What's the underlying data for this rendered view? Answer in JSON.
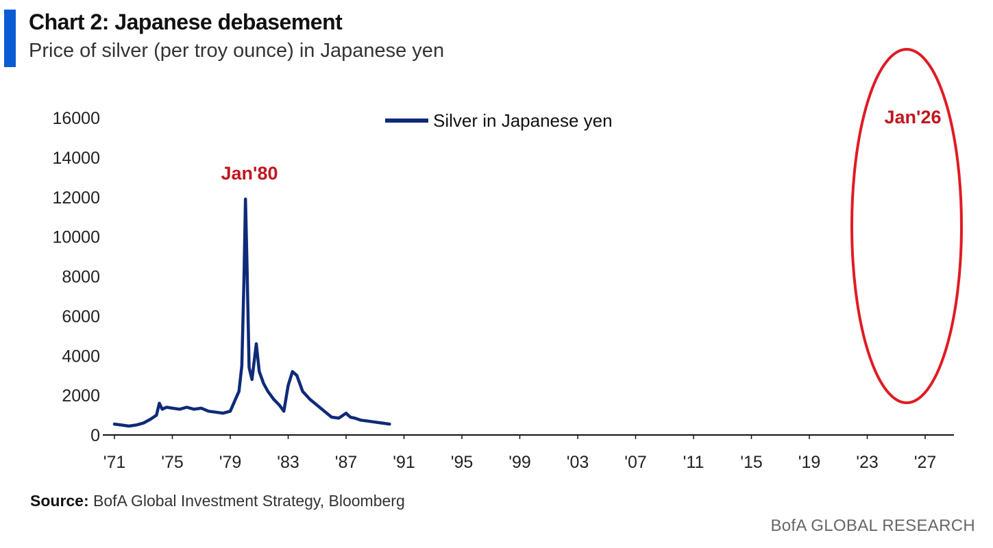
{
  "header": {
    "title": "Chart 2: Japanese debasement",
    "subtitle": "Price of silver (per troy ounce) in Japanese yen"
  },
  "footer": {
    "source_label": "Source:",
    "source_text": "BofA Global Investment Strategy, Bloomberg",
    "brand": "BofA GLOBAL RESEARCH"
  },
  "colors": {
    "accent": "#0b5bd3",
    "series": "#0f2a78",
    "annotation": "#c0161e",
    "ellipse": "#e01b22"
  },
  "chart_data": {
    "type": "line",
    "title": "",
    "xlabel": "",
    "ylabel": "",
    "ylim": [
      0,
      16000
    ],
    "xlim": [
      1971,
      1990.0
    ],
    "y_ticks": [
      "0",
      "2000",
      "4000",
      "6000",
      "8000",
      "10000",
      "12000",
      "14000",
      "16000"
    ],
    "x_ticks": [
      {
        "year": 1971,
        "label": "'71"
      },
      {
        "year": 1975,
        "label": "'75"
      },
      {
        "year": 1979,
        "label": "'79"
      },
      {
        "year": 1983,
        "label": "'83"
      },
      {
        "year": 1987,
        "label": "'87"
      },
      {
        "year": 1991,
        "label": "'91"
      },
      {
        "year": 1995,
        "label": "'95"
      },
      {
        "year": 1999,
        "label": "'99"
      },
      {
        "year": 2003,
        "label": "'03"
      },
      {
        "year": 2007,
        "label": "'07"
      },
      {
        "year": 2011,
        "label": "'11"
      },
      {
        "year": 2015,
        "label": "'15"
      },
      {
        "year": 2019,
        "label": "'19"
      },
      {
        "year": 2023,
        "label": "'23"
      },
      {
        "year": 2027,
        "label": "'27"
      }
    ],
    "legend": {
      "position": "top-center",
      "entries": [
        "Silver in Japanese yen"
      ]
    },
    "grid": false,
    "annotations": [
      {
        "text": "Jan'80",
        "x": 1980.05,
        "y": 11900
      },
      {
        "text": "Jan'26",
        "x": 2026.05,
        "y": 14900,
        "highlight": "ellipse"
      }
    ],
    "series": [
      {
        "name": "Silver in Japanese yen",
        "x": [
          1971.0,
          1971.5,
          1972.0,
          1972.5,
          1973.0,
          1973.5,
          1973.9,
          1974.1,
          1974.3,
          1974.6,
          1975.0,
          1975.5,
          1976.0,
          1976.5,
          1977.0,
          1977.5,
          1978.0,
          1978.5,
          1979.0,
          1979.3,
          1979.6,
          1979.8,
          1979.95,
          1980.05,
          1980.15,
          1980.3,
          1980.5,
          1980.8,
          1981.0,
          1981.3,
          1981.6,
          1982.0,
          1982.4,
          1982.7,
          1983.0,
          1983.3,
          1983.6,
          1984.0,
          1984.5,
          1985.0,
          1985.5,
          1986.0,
          1986.5,
          1987.0,
          1987.3,
          1987.6,
          1988.0,
          1988.5,
          1989.0,
          1989.5,
          1990.0
        ],
        "values": [
          550,
          500,
          450,
          500,
          600,
          800,
          1000,
          1600,
          1300,
          1400,
          1350,
          1300,
          1400,
          1300,
          1350,
          1200,
          1150,
          1100,
          1200,
          1700,
          2200,
          3500,
          8000,
          11900,
          8800,
          3400,
          2800,
          4600,
          3200,
          2600,
          2200,
          1800,
          1500,
          1200,
          2500,
          3200,
          3000,
          2200,
          1800,
          1500,
          1200,
          900,
          850,
          1100,
          900,
          850,
          750,
          700,
          650,
          600,
          550
        ]
      }
    ]
  }
}
